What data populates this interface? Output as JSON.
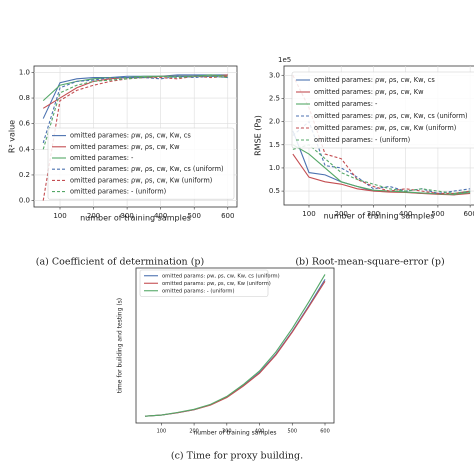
{
  "chart_data": [
    {
      "type": "line",
      "caption": "(a) Coefficient of determination (p)",
      "xlabel": "number of training samples",
      "ylabel": "R² value",
      "x": [
        50,
        100,
        150,
        200,
        250,
        300,
        350,
        400,
        450,
        500,
        550,
        600
      ],
      "xlim": [
        22.5,
        627.5
      ],
      "xticks": [
        100,
        200,
        300,
        400,
        500,
        600
      ],
      "ylim": [
        -0.05,
        1.05
      ],
      "yticks": [
        {
          "value": 0,
          "label": "0.0"
        },
        0.2,
        0.4,
        0.6,
        0.8,
        {
          "value": 1,
          "label": "1.0"
        }
      ],
      "grid": true,
      "series": [
        {
          "name": "omitted parames: ρw, ρs, cw, Kw, cs",
          "color": "#4c72b0",
          "linestyle": "solid",
          "values": [
            0.64,
            0.92,
            0.95,
            0.96,
            0.96,
            0.97,
            0.97,
            0.97,
            0.98,
            0.98,
            0.98,
            0.98
          ]
        },
        {
          "name": "omitted parames: ρw, ρs, cw, Kw",
          "color": "#c44e52",
          "linestyle": "solid",
          "values": [
            0.72,
            0.8,
            0.88,
            0.93,
            0.95,
            0.96,
            0.96,
            0.97,
            0.97,
            0.97,
            0.97,
            0.98
          ]
        },
        {
          "name": "omitted parames: -",
          "color": "#55a868",
          "linestyle": "solid",
          "values": [
            0.78,
            0.9,
            0.93,
            0.95,
            0.96,
            0.96,
            0.97,
            0.97,
            0.97,
            0.97,
            0.98,
            0.97
          ]
        },
        {
          "name": "omitted parames: ρw, ρs, cw, Kw, cs (uniform)",
          "color": "#4c72b0",
          "linestyle": "dashed",
          "values": [
            0.45,
            0.88,
            0.93,
            0.94,
            0.96,
            0.96,
            0.96,
            0.95,
            0.97,
            0.96,
            0.97,
            0.96
          ]
        },
        {
          "name": "omitted parames: ρw, ρs, cw, Kw (uniform)",
          "color": "#c44e52",
          "linestyle": "dashed",
          "values": [
            0.0,
            0.78,
            0.86,
            0.9,
            0.93,
            0.95,
            0.96,
            0.96,
            0.95,
            0.97,
            0.96,
            0.97
          ]
        },
        {
          "name": "omitted parames: - (uniform)",
          "color": "#55a868",
          "linestyle": "dashed",
          "values": [
            0.4,
            0.84,
            0.9,
            0.93,
            0.94,
            0.95,
            0.96,
            0.97,
            0.96,
            0.97,
            0.97,
            0.96
          ]
        }
      ]
    },
    {
      "type": "line",
      "caption": "(b) Root-mean-square-error (p)",
      "xlabel": "number of training samples",
      "ylabel": "RMSE (Pa)",
      "offset_label": "1e5",
      "x": [
        50,
        100,
        150,
        200,
        250,
        300,
        350,
        400,
        450,
        500,
        550,
        600
      ],
      "xlim": [
        22.5,
        627.5
      ],
      "xticks": [
        100,
        200,
        300,
        400,
        500,
        600
      ],
      "ylim": [
        0.2,
        3.2
      ],
      "yticks": [
        0.5,
        {
          "value": 1,
          "label": "1.0"
        },
        1.5,
        {
          "value": 2,
          "label": "2.0"
        },
        2.5,
        {
          "value": 3,
          "label": "3.0"
        }
      ],
      "grid": true,
      "series": [
        {
          "name": "omitted parames: ρw, ρs, cw, Kw, cs",
          "color": "#4c72b0",
          "linestyle": "solid",
          "values": [
            1.8,
            0.9,
            0.85,
            0.7,
            0.6,
            0.5,
            0.5,
            0.48,
            0.45,
            0.45,
            0.42,
            0.5
          ]
        },
        {
          "name": "omitted parames: ρw, ρs, cw, Kw",
          "color": "#c44e52",
          "linestyle": "solid",
          "values": [
            1.3,
            0.8,
            0.7,
            0.65,
            0.55,
            0.5,
            0.48,
            0.47,
            0.45,
            0.43,
            0.42,
            0.45
          ]
        },
        {
          "name": "omitted parames: -",
          "color": "#55a868",
          "linestyle": "solid",
          "values": [
            1.5,
            1.3,
            1.0,
            0.7,
            0.6,
            0.52,
            0.5,
            0.48,
            0.46,
            0.44,
            0.43,
            0.47
          ]
        },
        {
          "name": "omitted parames: ρw, ρs, cw, Kw, cs (uniform)",
          "color": "#4c72b0",
          "linestyle": "dashed",
          "values": [
            1.7,
            2.0,
            1.05,
            1.0,
            0.8,
            0.55,
            0.6,
            0.5,
            0.55,
            0.45,
            0.5,
            0.55
          ]
        },
        {
          "name": "omitted parames: ρw, ρs, cw, Kw (uniform)",
          "color": "#c44e52",
          "linestyle": "dashed",
          "values": [
            3.0,
            2.3,
            1.3,
            1.2,
            0.75,
            0.6,
            0.5,
            0.55,
            0.5,
            0.45,
            0.45,
            0.5
          ]
        },
        {
          "name": "omitted parames: - (uniform)",
          "color": "#55a868",
          "linestyle": "dashed",
          "values": [
            1.4,
            1.5,
            1.2,
            0.9,
            0.75,
            0.65,
            0.55,
            0.5,
            0.55,
            0.5,
            0.45,
            0.5
          ]
        }
      ]
    },
    {
      "type": "line",
      "caption": "(c) Time for proxy building.",
      "xlabel": "number of training samples",
      "ylabel": "time for building and testing (s)",
      "x": [
        50,
        100,
        150,
        200,
        250,
        300,
        350,
        400,
        450,
        500,
        550,
        600
      ],
      "xlim": [
        22.5,
        627.5
      ],
      "xticks": [
        100,
        200,
        300,
        400,
        500,
        600
      ],
      "ylim": [
        -13,
        395
      ],
      "grid": false,
      "series": [
        {
          "name": "omitted params: ρw, ρs, cw, Kw, cs (uniform)",
          "color": "#4c72b0",
          "linestyle": "solid",
          "values": [
            5,
            8,
            14,
            22,
            35,
            55,
            85,
            120,
            168,
            228,
            295,
            365
          ]
        },
        {
          "name": "omitted params: ρw, ρs, cw, Kw (uniform)",
          "color": "#c44e52",
          "linestyle": "solid",
          "values": [
            5,
            8,
            14,
            22,
            34,
            54,
            84,
            118,
            166,
            226,
            292,
            360
          ]
        },
        {
          "name": "omitted params: - (uniform)",
          "color": "#55a868",
          "linestyle": "solid",
          "values": [
            5,
            8,
            15,
            23,
            36,
            57,
            88,
            124,
            174,
            236,
            305,
            378
          ]
        }
      ]
    }
  ]
}
